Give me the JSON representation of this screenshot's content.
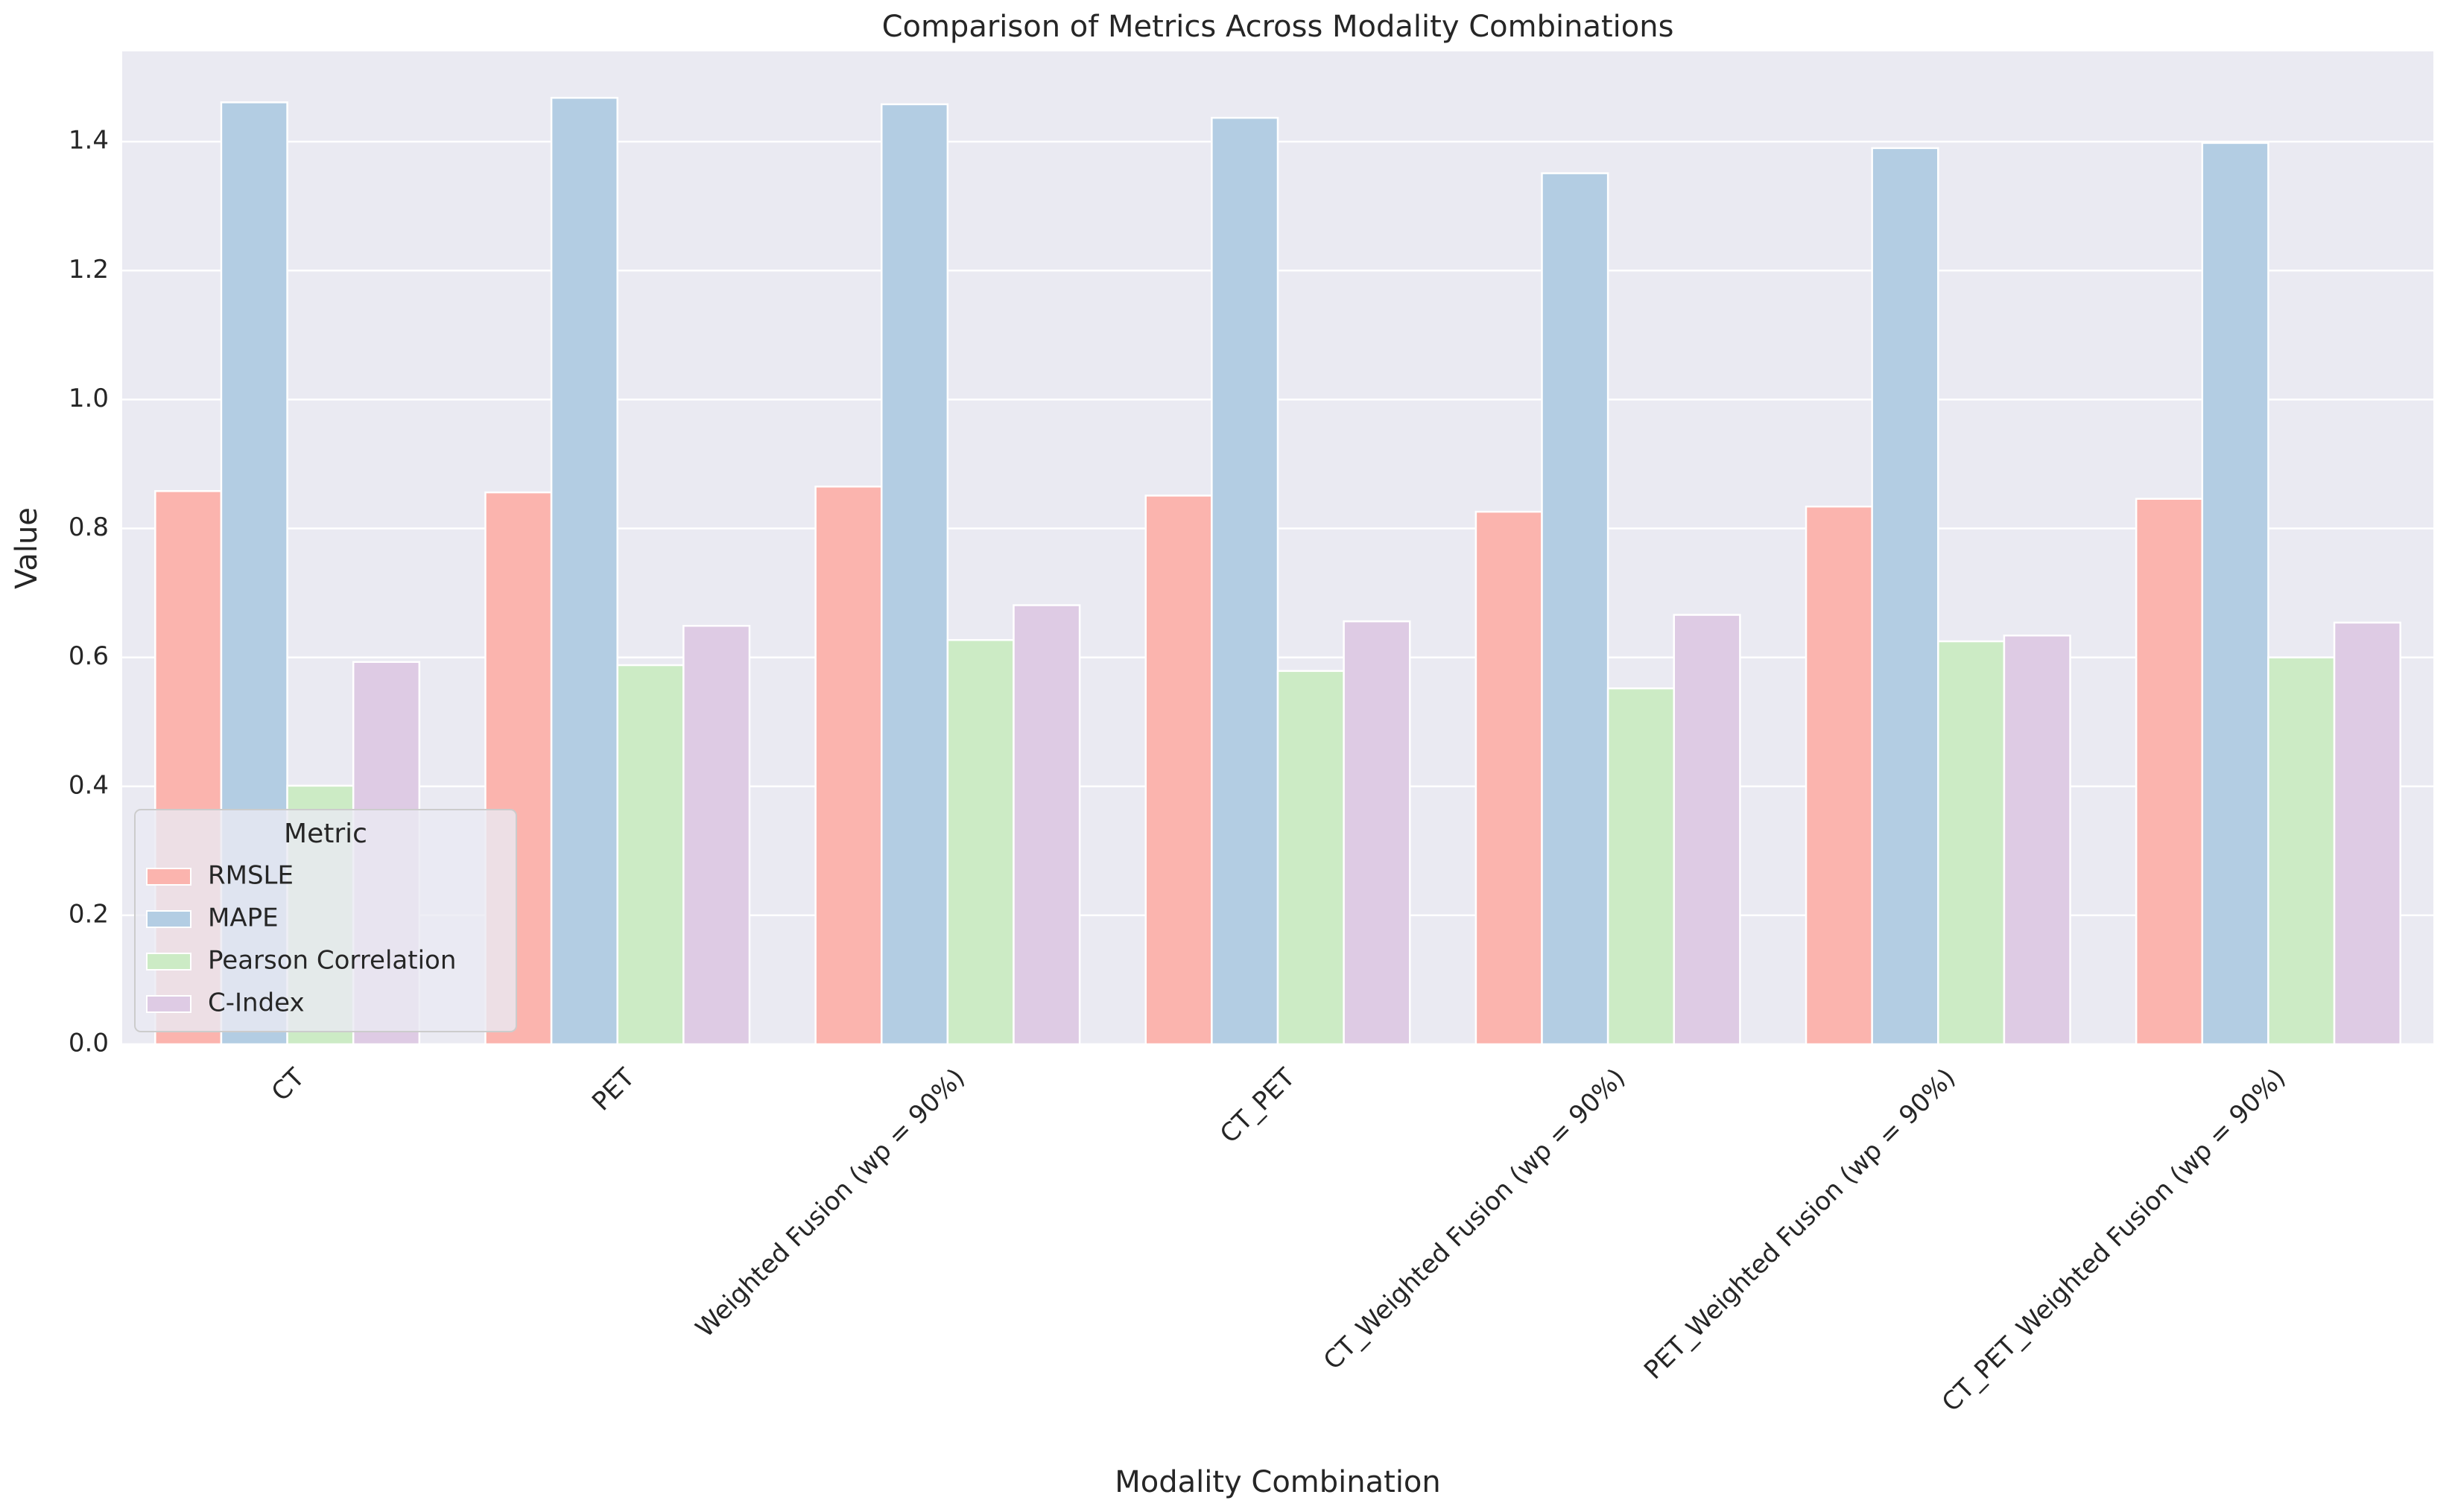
{
  "chart_data": {
    "type": "bar",
    "title": "Comparison of Metrics Across Modality Combinations",
    "x_label": "Modality Combination",
    "y_label": "Value",
    "categories": [
      "CT",
      "PET",
      "Weighted Fusion (wp = 90%)",
      "CT_PET",
      "CT_Weighted Fusion (wp = 90%)",
      "PET_Weighted Fusion (wp = 90%)",
      "CT_PET_Weighted Fusion (wp = 90%)"
    ],
    "series": [
      {
        "name": "RMSLE",
        "color": "#fbb4ae",
        "values": [
          0.858,
          0.856,
          0.865,
          0.851,
          0.826,
          0.834,
          0.846
        ]
      },
      {
        "name": "MAPE",
        "color": "#b3cde3",
        "values": [
          1.461,
          1.468,
          1.458,
          1.437,
          1.351,
          1.39,
          1.398
        ]
      },
      {
        "name": "Pearson Correlation",
        "color": "#ccebc5",
        "values": [
          0.401,
          0.588,
          0.627,
          0.579,
          0.552,
          0.625,
          0.6
        ]
      },
      {
        "name": "C-Index",
        "color": "#decbe4",
        "values": [
          0.593,
          0.649,
          0.681,
          0.656,
          0.666,
          0.634,
          0.654
        ]
      }
    ],
    "legend_title": "Metric",
    "legend": "lower left",
    "ylim": [
      0,
      1.54
    ],
    "yticks": [
      {
        "value": 0,
        "label": "0.0"
      },
      0.2,
      0.4,
      0.6,
      0.8,
      {
        "value": 1,
        "label": "1.0"
      },
      1.2,
      1.4
    ],
    "grid": true
  }
}
